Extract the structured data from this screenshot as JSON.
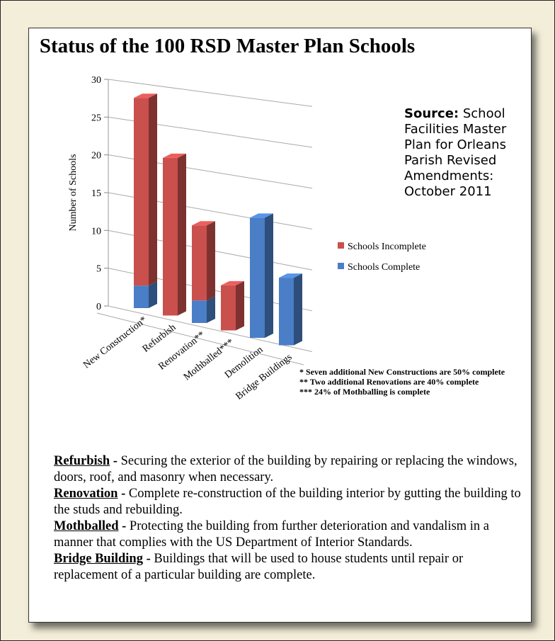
{
  "chart_data": {
    "type": "bar",
    "subtype": "3d-stacked-column",
    "title": "Status of the 100 RSD Master Plan Schools",
    "ylabel": "Number of Schools",
    "ylim": [
      0,
      30
    ],
    "yticks": [
      0,
      5,
      10,
      15,
      20,
      25,
      30
    ],
    "categories": [
      "New Construction*",
      "Refurbish",
      "Renovation**",
      "Mothballed***",
      "Demolition",
      "Bridge Buildings"
    ],
    "series": [
      {
        "name": "Schools Complete",
        "color": "#4a7ec6",
        "values": [
          3,
          0,
          3,
          0,
          16,
          9
        ]
      },
      {
        "name": "Schools Incomplete",
        "color": "#c9504d",
        "values": [
          25,
          21,
          10,
          6,
          0,
          0
        ]
      }
    ],
    "legend": "right",
    "grid": true
  },
  "source": {
    "label": "Source:",
    "text": "School Facilities Master Plan for Orleans Parish Revised Amendments: October 2011"
  },
  "footnotes": [
    "* Seven additional New Constructions are 50% complete",
    "** Two additional Renovations are 40% complete",
    "*** 24% of Mothballing is complete"
  ],
  "definitions": [
    {
      "term": "Refurbish",
      "text": "Securing the exterior of the building by repairing or replacing the windows, doors, roof, and masonry when necessary."
    },
    {
      "term": "Renovation",
      "text": "Complete re-construction of the building interior by gutting the building to the studs and rebuilding."
    },
    {
      "term": "Mothballed",
      "text": "Protecting the building from further deterioration and vandalism in a manner that complies with the US Department of Interior Standards."
    },
    {
      "term": "Bridge Building",
      "text": "Buildings that will be used to house students until repair or replacement of a particular building are complete."
    }
  ],
  "separator": " - "
}
